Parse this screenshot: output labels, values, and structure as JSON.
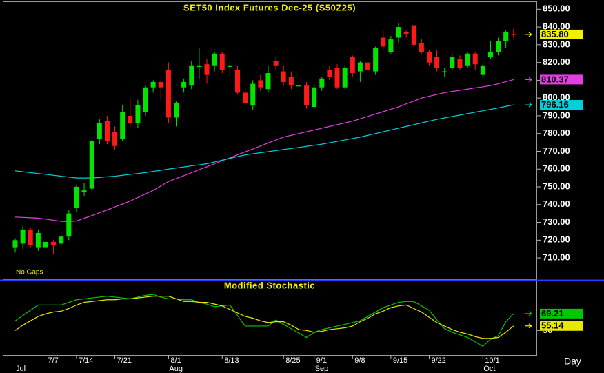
{
  "chart_data": [
    {
      "type": "candlestick",
      "title": "SET50 Index Futures Dec-25 (S50Z25)",
      "annotation": "No Gaps",
      "up_color": "#00e400",
      "down_color": "#ff1a1a",
      "open": [
        716,
        718,
        726,
        716,
        716,
        719,
        718,
        722,
        738,
        747,
        749,
        777,
        787,
        781,
        777,
        790,
        786,
        792,
        806,
        809,
        816,
        789,
        806,
        807,
        818,
        819,
        818,
        825,
        818,
        816,
        803,
        796,
        810,
        805,
        821,
        815,
        812,
        807,
        807,
        795,
        806,
        816,
        817,
        806,
        823,
        815,
        820,
        815,
        834,
        826,
        834,
        837,
        841,
        831,
        826,
        823,
        815,
        817,
        822,
        818,
        825,
        813,
        823,
        826,
        832,
        836
      ],
      "high": [
        721,
        728,
        727,
        726,
        720,
        720,
        723,
        737,
        751,
        752,
        777,
        788,
        790,
        784,
        796,
        800,
        799,
        807,
        810,
        811,
        820,
        798,
        811,
        821,
        828,
        822,
        826,
        826,
        821,
        818,
        806,
        810,
        813,
        818,
        823,
        818,
        815,
        812,
        809,
        808,
        812,
        818,
        819,
        818,
        824,
        821,
        822,
        829,
        838,
        835,
        842,
        838,
        841,
        833,
        827,
        827,
        817,
        825,
        824,
        826,
        826,
        819,
        832,
        834,
        838,
        839
      ],
      "low": [
        713,
        715,
        716,
        714,
        713,
        712,
        717,
        720,
        736,
        745,
        748,
        774,
        774,
        771,
        776,
        784,
        783,
        790,
        803,
        799,
        786,
        784,
        803,
        805,
        811,
        808,
        815,
        814,
        813,
        802,
        796,
        793,
        804,
        803,
        816,
        807,
        805,
        803,
        794,
        794,
        804,
        810,
        805,
        805,
        812,
        809,
        815,
        813,
        827,
        825,
        831,
        834,
        829,
        825,
        818,
        815,
        812,
        816,
        816,
        817,
        816,
        811,
        822,
        824,
        828,
        834
      ],
      "close": [
        720,
        726,
        717,
        724,
        719,
        717,
        722,
        735,
        750,
        748,
        776,
        786,
        776,
        773,
        792,
        786,
        796,
        806,
        809,
        806,
        789,
        797,
        809,
        818,
        818,
        813,
        825,
        816,
        818,
        803,
        797,
        808,
        806,
        814,
        818,
        809,
        807,
        807,
        796,
        806,
        811,
        812,
        806,
        817,
        814,
        820,
        816,
        828,
        829,
        833,
        840,
        836,
        830,
        826,
        820,
        817,
        815,
        823,
        817,
        825,
        819,
        818,
        826,
        832,
        837,
        835.8
      ],
      "last_label": "835.80",
      "last_label_color": "#f0f000",
      "series": [
        {
          "color": "#e040e0",
          "last_label": "810.37",
          "values": [
            733,
            732.8,
            732.6,
            732.4,
            731.8,
            731.2,
            730.6,
            730.4,
            730.8,
            732.3,
            733.8,
            735.4,
            737,
            738.7,
            740.3,
            742,
            744,
            746,
            748,
            750.5,
            753,
            754.7,
            756.3,
            758,
            759.7,
            761.3,
            763,
            764.7,
            766.3,
            768,
            769.7,
            771.3,
            773,
            774.7,
            776.3,
            778,
            779,
            780,
            781,
            782,
            783,
            784,
            785,
            786,
            787,
            788.3,
            789.7,
            791,
            792.3,
            793.7,
            795,
            796.7,
            798.3,
            800,
            801,
            802,
            803,
            803.7,
            804.3,
            805,
            805.7,
            806.3,
            807,
            808,
            809.2,
            810.37
          ]
        },
        {
          "color": "#00d0d8",
          "last_label": "796.16",
          "values": [
            759,
            758.5,
            758,
            757.5,
            757,
            756.5,
            756,
            755.5,
            755,
            755,
            755,
            755.3,
            755.7,
            756,
            756.5,
            757,
            757.5,
            758,
            758.7,
            759.3,
            760,
            760.6,
            761.2,
            761.8,
            762.4,
            763,
            764,
            765,
            766,
            767,
            768,
            768.6,
            769.2,
            769.8,
            770.4,
            771,
            771.6,
            772.2,
            772.8,
            773.4,
            774,
            774.8,
            775.6,
            776.4,
            777.2,
            778,
            779,
            780,
            781,
            782,
            783,
            784,
            785,
            786,
            787,
            788,
            788.8,
            789.6,
            790.4,
            791.2,
            792,
            792.8,
            793.6,
            794.4,
            795.3,
            796.16
          ]
        }
      ],
      "ylim": [
        698,
        854
      ],
      "yticks": [
        {
          "value": 710,
          "label": "710.00"
        },
        {
          "value": 720,
          "label": "720.00"
        },
        {
          "value": 730,
          "label": "730.00"
        },
        {
          "value": 740,
          "label": "740.00"
        },
        {
          "value": 750,
          "label": "750.00"
        },
        {
          "value": 760,
          "label": "760.00"
        },
        {
          "value": 770,
          "label": "770.00"
        },
        {
          "value": 780,
          "label": "780.00"
        },
        {
          "value": 790,
          "label": "790.00"
        },
        {
          "value": 800,
          "label": "800.00"
        },
        {
          "value": 810,
          "label": "810.00"
        },
        {
          "value": 820,
          "label": "820.00"
        },
        {
          "value": 830,
          "label": "830.00"
        },
        {
          "value": 840,
          "label": "840.00"
        },
        {
          "value": 850,
          "label": "850.00"
        }
      ]
    },
    {
      "type": "line",
      "title": "Modified Stochastic",
      "x_label": "Day",
      "categories": [
        null,
        null,
        null,
        null,
        "7/7",
        null,
        null,
        null,
        "7/14",
        null,
        null,
        null,
        null,
        "7/21",
        null,
        null,
        null,
        null,
        null,
        null,
        "8/1",
        null,
        null,
        null,
        null,
        null,
        null,
        "8/13",
        null,
        null,
        null,
        null,
        null,
        null,
        null,
        "8/25",
        null,
        null,
        null,
        "9/1",
        null,
        null,
        null,
        null,
        "9/8",
        null,
        null,
        null,
        null,
        "9/15",
        null,
        null,
        null,
        null,
        "9/22",
        null,
        null,
        null,
        null,
        null,
        null,
        "10/1",
        null,
        null,
        null,
        null
      ],
      "month_categories": [
        "Jul",
        null,
        null,
        null,
        null,
        null,
        null,
        null,
        null,
        null,
        null,
        null,
        null,
        null,
        null,
        null,
        null,
        null,
        null,
        null,
        "Aug",
        null,
        null,
        null,
        null,
        null,
        null,
        null,
        null,
        null,
        null,
        null,
        null,
        null,
        null,
        null,
        null,
        null,
        null,
        "Sep",
        null,
        null,
        null,
        null,
        null,
        null,
        null,
        null,
        null,
        null,
        null,
        null,
        null,
        null,
        null,
        null,
        null,
        null,
        null,
        null,
        null,
        "Oct",
        null,
        null,
        null,
        null
      ],
      "series": [
        {
          "color": "#00c800",
          "last_label": "69.21",
          "values": [
            61,
            67,
            73,
            79,
            79,
            79,
            79,
            82,
            85,
            86,
            87,
            88,
            89,
            88,
            87,
            86,
            88,
            90,
            91,
            88,
            86,
            86,
            85,
            85,
            82,
            80,
            77,
            78,
            79,
            67,
            55,
            55,
            55,
            55,
            62,
            57,
            52,
            47,
            42,
            48,
            51,
            53,
            55,
            57,
            59,
            61,
            66,
            71,
            76,
            79,
            82,
            83,
            83,
            78,
            73,
            62,
            52,
            48,
            45,
            42,
            37,
            32,
            40,
            44,
            60,
            69.21
          ]
        },
        {
          "color": "#e8e800",
          "last_label": "55.14",
          "values": [
            50,
            56,
            61,
            66,
            69,
            71,
            72,
            75,
            79,
            82,
            83,
            84,
            85,
            85,
            86,
            86,
            87,
            88,
            89,
            89,
            89,
            86,
            83,
            83,
            82,
            82,
            80,
            78,
            74,
            70,
            66,
            64,
            61,
            59,
            60,
            60,
            56,
            51,
            50,
            48,
            49,
            51,
            52,
            53,
            55,
            60,
            64,
            69,
            72,
            76,
            78,
            79,
            75,
            71,
            65,
            59,
            55,
            51,
            48,
            46,
            43,
            41,
            41,
            42,
            48,
            55.14
          ]
        }
      ],
      "ylim": [
        22,
        106
      ],
      "yticks": [
        50
      ]
    }
  ]
}
